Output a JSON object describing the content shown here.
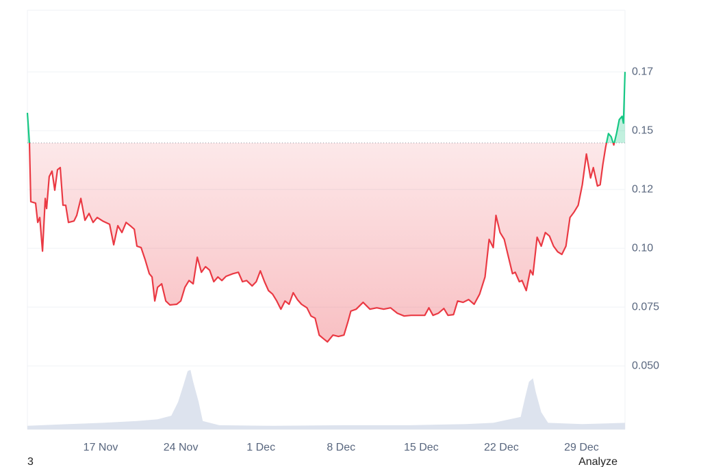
{
  "chart_data": {
    "type": "line",
    "xlim": [
      0.3,
      52.5
    ],
    "ylim": [
      0.023,
      0.2012
    ],
    "yticks": [
      {
        "value": 0.05,
        "label": "0.050"
      },
      0.075,
      {
        "value": 0.1,
        "label": "0.10"
      },
      {
        "value": 0.125,
        "label": "0.12"
      },
      0.15,
      {
        "value": 0.175,
        "label": "0.17"
      }
    ],
    "xticks": [
      {
        "value": 6.7,
        "label": "17 Nov"
      },
      {
        "value": 13.7,
        "label": "24 Nov"
      },
      {
        "value": 20.7,
        "label": "1 Dec"
      },
      {
        "value": 27.7,
        "label": "8 Dec"
      },
      {
        "value": 34.7,
        "label": "15 Dec"
      },
      {
        "value": 41.7,
        "label": "22 Dec"
      },
      {
        "value": 48.7,
        "label": "29 Dec"
      }
    ],
    "grid": true,
    "baseline": 0.1448,
    "up_color": "#16c784",
    "down_color": "#ea3943",
    "x": [
      0.3,
      0.48,
      0.6,
      1.02,
      1.2,
      1.38,
      1.62,
      1.86,
      1.98,
      2.21,
      2.45,
      2.69,
      2.93,
      3.17,
      3.41,
      3.65,
      3.89,
      4.37,
      4.61,
      4.97,
      5.33,
      5.69,
      6.04,
      6.4,
      6.88,
      7.48,
      7.84,
      8.2,
      8.56,
      8.92,
      9.28,
      9.64,
      9.87,
      10.23,
      10.59,
      10.95,
      11.19,
      11.43,
      11.67,
      12.03,
      12.39,
      12.75,
      13.34,
      13.7,
      14.06,
      14.42,
      14.78,
      15.14,
      15.5,
      15.86,
      16.22,
      16.58,
      16.94,
      17.29,
      17.65,
      18.25,
      18.73,
      19.09,
      19.45,
      19.93,
      20.29,
      20.65,
      21.01,
      21.36,
      21.72,
      22.08,
      22.44,
      22.8,
      23.16,
      23.52,
      23.88,
      24.24,
      24.72,
      25.07,
      25.43,
      25.79,
      26.15,
      26.51,
      26.99,
      27.47,
      27.95,
      28.31,
      28.55,
      29.02,
      29.62,
      30.22,
      30.82,
      31.42,
      32.02,
      32.61,
      33.21,
      33.81,
      34.41,
      35.01,
      35.37,
      35.73,
      36.2,
      36.68,
      37.04,
      37.52,
      37.88,
      38.36,
      38.84,
      39.32,
      39.8,
      40.27,
      40.63,
      40.99,
      41.23,
      41.59,
      41.95,
      42.31,
      42.67,
      42.91,
      43.27,
      43.51,
      43.87,
      44.23,
      44.46,
      44.82,
      45.18,
      45.54,
      45.9,
      46.26,
      46.62,
      46.98,
      47.34,
      47.69,
      48.05,
      48.41,
      48.77,
      49.13,
      49.49,
      49.73,
      50.09,
      50.33,
      50.57,
      50.81,
      51.05,
      51.29,
      51.52,
      51.76,
      52.0,
      52.24,
      52.36,
      52.5
    ],
    "values": [
      0.1576,
      0.1448,
      0.1198,
      0.1192,
      0.111,
      0.1131,
      0.0988,
      0.1212,
      0.1169,
      0.1305,
      0.1328,
      0.1247,
      0.1334,
      0.1343,
      0.1183,
      0.1183,
      0.111,
      0.1116,
      0.114,
      0.1212,
      0.1119,
      0.1148,
      0.111,
      0.1131,
      0.1116,
      0.1102,
      0.1015,
      0.1096,
      0.1067,
      0.111,
      0.1096,
      0.1081,
      0.1009,
      0.1003,
      0.0951,
      0.0892,
      0.0878,
      0.0776,
      0.0834,
      0.0849,
      0.0776,
      0.0759,
      0.0762,
      0.0776,
      0.0834,
      0.0863,
      0.0849,
      0.0962,
      0.0898,
      0.0922,
      0.0907,
      0.0858,
      0.0878,
      0.0863,
      0.0881,
      0.0892,
      0.0898,
      0.0858,
      0.0863,
      0.084,
      0.0858,
      0.0904,
      0.0858,
      0.082,
      0.0805,
      0.0776,
      0.0741,
      0.0776,
      0.0762,
      0.0811,
      0.0782,
      0.0762,
      0.0747,
      0.0712,
      0.0703,
      0.0631,
      0.0616,
      0.0602,
      0.0631,
      0.0625,
      0.0631,
      0.0689,
      0.0733,
      0.0741,
      0.077,
      0.0741,
      0.0747,
      0.0741,
      0.0747,
      0.0724,
      0.0712,
      0.0715,
      0.0715,
      0.0715,
      0.0747,
      0.0715,
      0.0724,
      0.0744,
      0.0715,
      0.0718,
      0.0776,
      0.077,
      0.0782,
      0.0762,
      0.0805,
      0.0878,
      0.1038,
      0.1003,
      0.114,
      0.1067,
      0.1038,
      0.0965,
      0.0892,
      0.0898,
      0.0858,
      0.0863,
      0.082,
      0.0907,
      0.0887,
      0.1047,
      0.1009,
      0.1067,
      0.1052,
      0.1009,
      0.0985,
      0.0974,
      0.1009,
      0.1131,
      0.1154,
      0.1183,
      0.127,
      0.1401,
      0.1299,
      0.1343,
      0.1265,
      0.127,
      0.1358,
      0.143,
      0.1488,
      0.1474,
      0.1439,
      0.1488,
      0.1547,
      0.1561,
      0.1532,
      0.175
    ],
    "volume": {
      "color": "#dde3ee",
      "lim": [
        0,
        100
      ],
      "x": [
        0.3,
        3.89,
        6.88,
        9.87,
        11.67,
        12.87,
        13.46,
        13.94,
        14.3,
        14.54,
        14.78,
        15.26,
        15.62,
        17.06,
        21.84,
        27.83,
        33.81,
        38.6,
        40.99,
        43.39,
        43.75,
        44.11,
        44.46,
        44.7,
        45.18,
        45.78,
        48.77,
        52.5
      ],
      "values": [
        6,
        9,
        11,
        14,
        17,
        23,
        46,
        75,
        98,
        100,
        80,
        46,
        14,
        7,
        6,
        7,
        7,
        9,
        11,
        21,
        52,
        80,
        86,
        63,
        29,
        11,
        9,
        11
      ]
    }
  },
  "footer": {
    "left": "3",
    "right": "Analyze"
  }
}
